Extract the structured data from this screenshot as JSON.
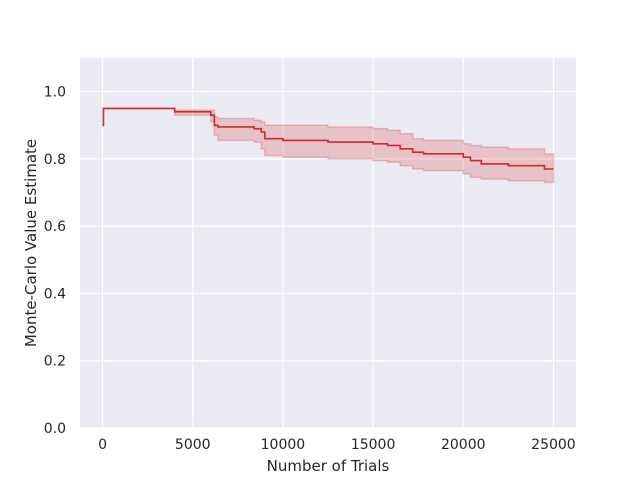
{
  "chart_data": {
    "type": "line",
    "title": "",
    "xlabel": "Number of Trials",
    "ylabel": "Monte-Carlo Value Estimate",
    "xlim": [
      -1250,
      26250
    ],
    "ylim": [
      0.0,
      1.1
    ],
    "grid": true,
    "step": true,
    "x_ticks": [
      0,
      5000,
      10000,
      15000,
      20000,
      25000
    ],
    "x_tick_labels": [
      "0",
      "5000",
      "10000",
      "15000",
      "20000",
      "25000"
    ],
    "y_ticks": [
      0.0,
      0.2,
      0.4,
      0.6,
      0.8,
      1.0
    ],
    "y_tick_labels": [
      "0.0",
      "0.2",
      "0.4",
      "0.6",
      "0.8",
      "1.0"
    ],
    "colors": {
      "line": "#d62728",
      "band": "#d62728",
      "plot_bg": "#eaeaf2",
      "grid": "#ffffff"
    },
    "series": [
      {
        "x": [
          0,
          50,
          3800,
          4000,
          6000,
          6200,
          6400,
          8400,
          8800,
          9000,
          10000,
          12500,
          15000,
          15800,
          16500,
          17200,
          17800,
          20000,
          20400,
          21000,
          22500,
          24500,
          25000
        ],
        "y": [
          0.9,
          0.95,
          0.95,
          0.94,
          0.93,
          0.9,
          0.895,
          0.89,
          0.88,
          0.86,
          0.855,
          0.85,
          0.845,
          0.84,
          0.83,
          0.82,
          0.815,
          0.805,
          0.795,
          0.785,
          0.78,
          0.77,
          0.77
        ],
        "lower": [
          0.9,
          0.95,
          0.95,
          0.93,
          0.91,
          0.87,
          0.855,
          0.85,
          0.83,
          0.81,
          0.805,
          0.8,
          0.795,
          0.79,
          0.78,
          0.77,
          0.765,
          0.755,
          0.745,
          0.74,
          0.735,
          0.73,
          0.73
        ],
        "upper": [
          0.9,
          0.95,
          0.95,
          0.945,
          0.945,
          0.925,
          0.92,
          0.915,
          0.91,
          0.9,
          0.9,
          0.895,
          0.89,
          0.885,
          0.875,
          0.86,
          0.855,
          0.845,
          0.84,
          0.835,
          0.83,
          0.815,
          0.815
        ]
      }
    ]
  }
}
